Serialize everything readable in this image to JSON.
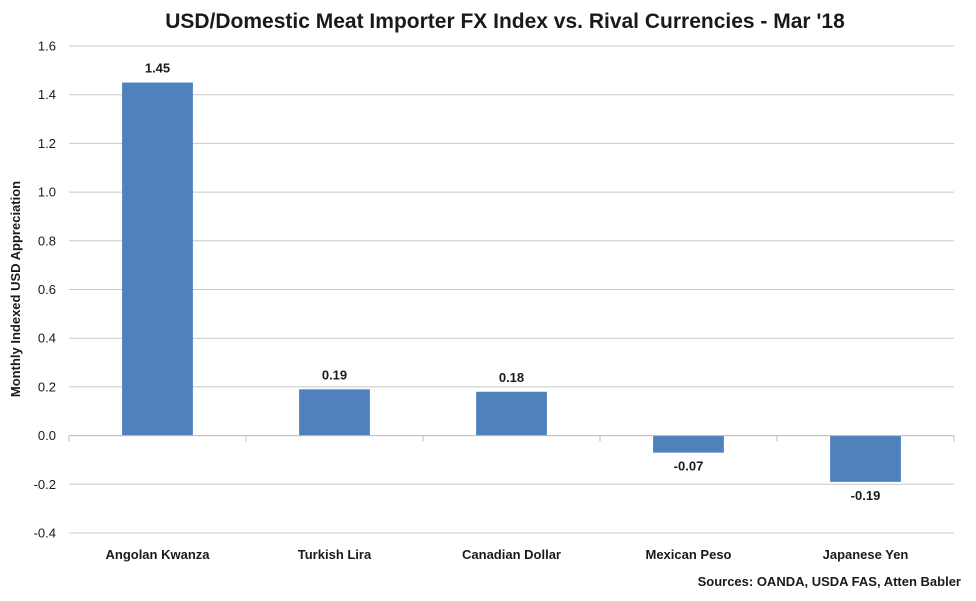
{
  "chart_data": {
    "type": "bar",
    "title": "USD/Domestic Meat Importer FX Index vs. Rival Currencies - Mar '18",
    "ylabel": "Monthly Indexed USD Appreciation",
    "xlabel": "",
    "categories": [
      "Angolan Kwanza",
      "Turkish Lira",
      "Canadian Dollar",
      "Mexican Peso",
      "Japanese Yen"
    ],
    "values": [
      1.45,
      0.19,
      0.18,
      -0.07,
      -0.19
    ],
    "data_labels": [
      "1.45",
      "0.19",
      "0.18",
      "-0.07",
      "-0.19"
    ],
    "ylim": [
      -0.4,
      1.6
    ],
    "yticks": [
      -0.4,
      -0.2,
      0.0,
      0.2,
      0.4,
      0.6,
      0.8,
      1.0,
      1.2,
      1.4,
      1.6
    ],
    "ytick_labels": [
      "-0.4",
      "-0.2",
      "0.0",
      "0.2",
      "0.4",
      "0.6",
      "0.8",
      "1.0",
      "1.2",
      "1.4",
      "1.6"
    ],
    "grid": true,
    "bar_color": "#4f81bd",
    "source": "Sources: OANDA, USDA FAS, Atten Babler"
  }
}
